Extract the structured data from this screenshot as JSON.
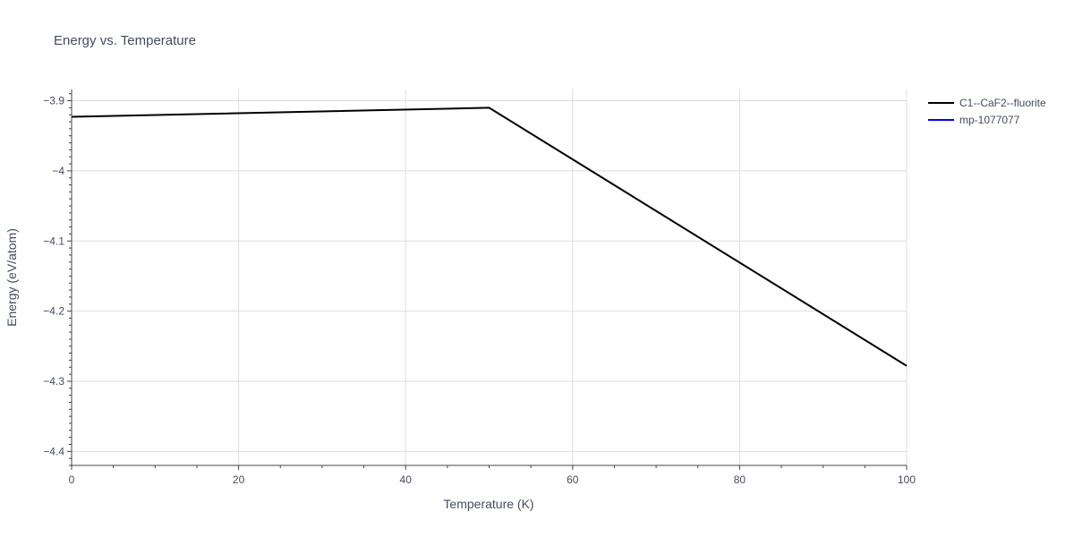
{
  "chart_data": {
    "type": "line",
    "title": "Energy vs. Temperature",
    "xlabel": "Temperature (K)",
    "ylabel": "Energy (eV/atom)",
    "xlim": [
      0,
      100
    ],
    "ylim": [
      -4.42,
      -3.884
    ],
    "x_ticks": [
      0,
      20,
      40,
      60,
      80,
      100
    ],
    "x_tick_labels": [
      "0",
      "20",
      "40",
      "60",
      "80",
      "100"
    ],
    "y_ticks": [
      -3.9,
      -4.0,
      -4.1,
      -4.2,
      -4.3,
      -4.4
    ],
    "y_tick_labels": [
      "−3.9",
      "−4",
      "−4.1",
      "−4.2",
      "−4.3",
      "−4.4"
    ],
    "grid": true,
    "legend_position": "top-right",
    "series": [
      {
        "name": "C1--CaF2--fluorite",
        "color": "#000000",
        "x": [
          0,
          50,
          100
        ],
        "y": [
          -3.923,
          -3.91,
          -4.278
        ]
      },
      {
        "name": "mp-1077077",
        "color": "#0000ff",
        "x": [],
        "y": []
      }
    ]
  }
}
